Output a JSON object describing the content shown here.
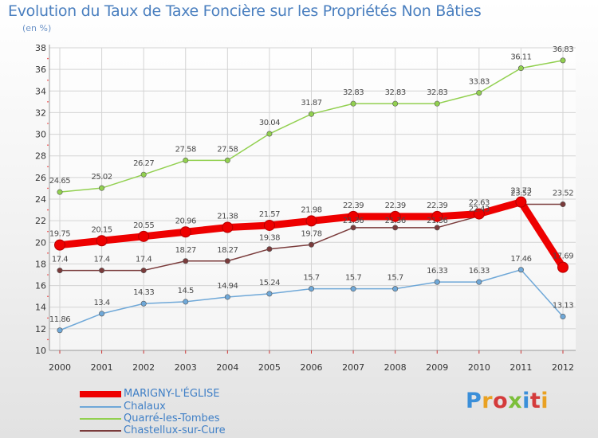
{
  "title": "Evolution du Taux de Taxe Foncière sur les Propriétés Non Bâties",
  "subtitle": "(en %)",
  "logo_text": "Proxiti",
  "chart_data": {
    "type": "line",
    "x": [
      "2000",
      "2001",
      "2002",
      "2003",
      "2004",
      "2005",
      "2006",
      "2007",
      "2008",
      "2009",
      "2010",
      "2011",
      "2012"
    ],
    "ylim": [
      10,
      38
    ],
    "yticks": [
      10,
      12,
      14,
      16,
      18,
      20,
      22,
      24,
      26,
      28,
      30,
      32,
      34,
      36,
      38
    ],
    "grid": true,
    "legend_position": "bottom-left",
    "series": [
      {
        "name": "MARIGNY-L'ÉGLISE",
        "color": "#ee0000",
        "values": [
          19.75,
          20.15,
          20.55,
          20.96,
          21.38,
          21.57,
          21.98,
          22.39,
          22.39,
          22.39,
          22.63,
          23.73,
          17.69
        ]
      },
      {
        "name": "Chalaux",
        "color": "#6fa8d8",
        "values": [
          11.86,
          13.4,
          14.33,
          14.5,
          14.94,
          15.24,
          15.7,
          15.7,
          15.7,
          16.33,
          16.33,
          17.46,
          13.13
        ]
      },
      {
        "name": "Quarré-les-Tombes",
        "color": "#92d050",
        "values": [
          24.65,
          25.02,
          26.27,
          27.58,
          27.58,
          30.04,
          31.87,
          32.83,
          32.83,
          32.83,
          33.83,
          36.11,
          36.83
        ]
      },
      {
        "name": "Chastellux-sur-Cure",
        "color": "#7a3b3b",
        "values": [
          17.4,
          17.4,
          17.4,
          18.27,
          18.27,
          19.38,
          19.78,
          21.36,
          21.36,
          21.36,
          22.43,
          23.52,
          23.52
        ]
      }
    ]
  }
}
